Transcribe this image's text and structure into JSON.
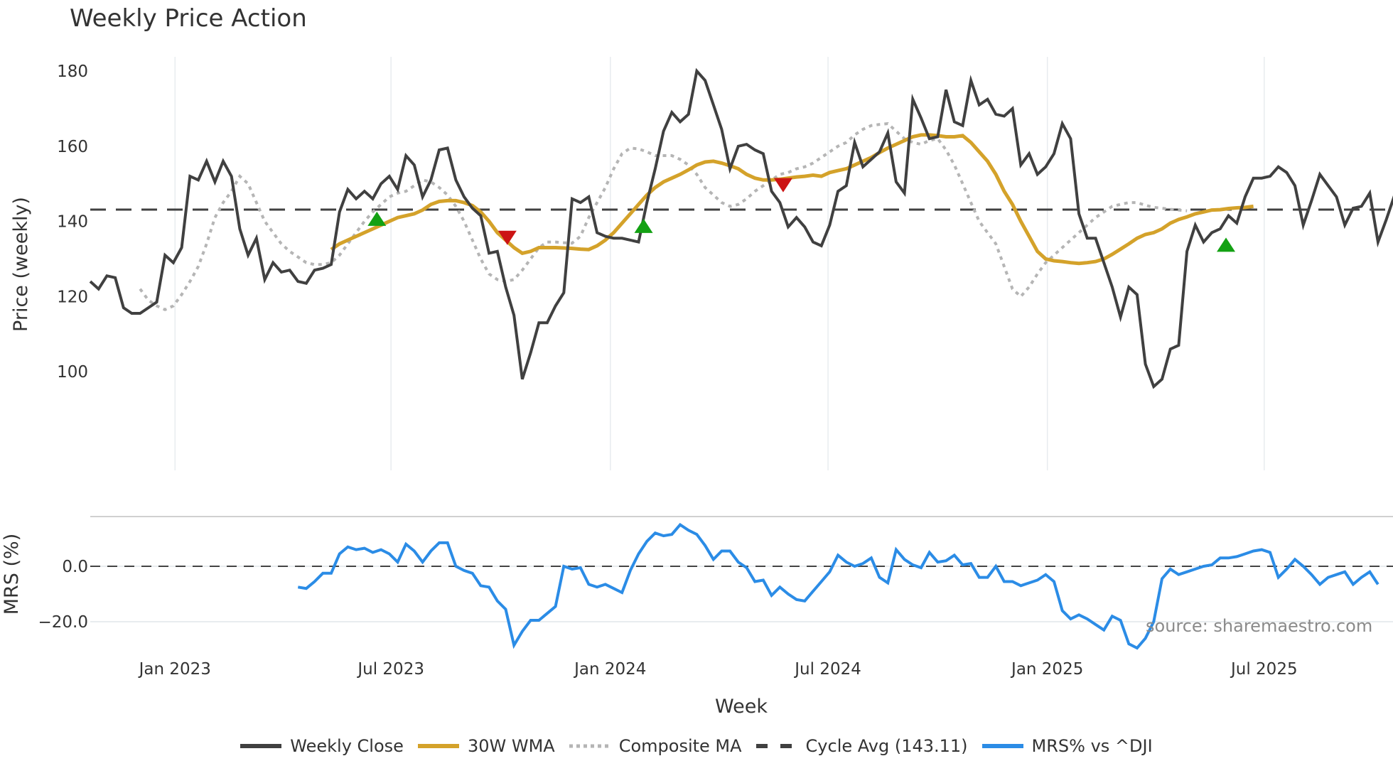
{
  "title": "Weekly Price Action",
  "source_label": "source: sharemaestro.com",
  "x_axis_title": "Week",
  "price_axis_title": "Price (weekly)",
  "mrs_axis_title": "MRS (%)",
  "legend": [
    {
      "label": "Weekly Close",
      "color": "#404040",
      "style": "solid"
    },
    {
      "label": "30W WMA",
      "color": "#d4a22a",
      "style": "solid"
    },
    {
      "label": "Composite MA",
      "color": "#b5b5b5",
      "style": "dotted"
    },
    {
      "label": "Cycle Avg (143.11)",
      "color": "#404040",
      "style": "dashed"
    },
    {
      "label": "MRS% vs ^DJI",
      "color": "#2b8ce6",
      "style": "solid"
    }
  ],
  "colors": {
    "close": "#404040",
    "wma": "#d4a22a",
    "composite": "#b5b5b5",
    "cycle": "#404040",
    "mrs": "#2b8ce6",
    "buy_marker": "#13a113",
    "sell_marker": "#cc1414",
    "grid": "#e8ecef"
  },
  "chart_data": [
    {
      "type": "line",
      "title": "Weekly Price Action",
      "xlabel": "Week",
      "ylabel": "Price (weekly)",
      "ylim": [
        91,
        184
      ],
      "y_ticks": [
        100,
        120,
        140,
        160,
        180
      ],
      "x_ticks": [
        {
          "label": "Jan 2023",
          "index": 10.2
        },
        {
          "label": "Jul 2023",
          "index": 36.2
        },
        {
          "label": "Jan 2024",
          "index": 62.6
        },
        {
          "label": "Jul 2024",
          "index": 88.8
        },
        {
          "label": "Jan 2025",
          "index": 115.2
        },
        {
          "label": "Jul 2025",
          "index": 141.3
        }
      ],
      "grid": true,
      "cycle_avg": 143.11,
      "series": [
        {
          "name": "Weekly Close",
          "start_index": 0,
          "values": [
            124,
            122,
            125.5,
            125,
            117,
            115.5,
            115.5,
            117,
            118.5,
            131,
            129,
            133,
            152,
            151,
            156,
            150.5,
            156,
            152,
            138,
            131,
            135.5,
            124.5,
            129,
            126.5,
            127,
            124,
            123.5,
            127,
            127.5,
            128.5,
            142.5,
            148.5,
            146,
            148,
            146,
            150,
            152,
            148.5,
            157.5,
            155,
            146.5,
            151,
            159,
            159.5,
            151,
            146.5,
            143.5,
            141.5,
            131.5,
            132,
            122.5,
            115,
            98,
            105,
            113,
            113,
            117.5,
            121,
            146,
            145,
            146.5,
            137,
            136,
            135.5,
            135.5,
            135,
            134.5,
            145,
            154,
            164,
            169,
            166.5,
            168.5,
            180,
            177.5,
            171,
            164.5,
            154,
            160,
            160.5,
            159,
            158,
            148,
            145,
            138.5,
            141,
            138.5,
            134.5,
            133.5,
            139,
            148,
            149.5,
            161,
            154.5,
            156.5,
            158.5,
            163.5,
            150.5,
            147.5,
            172.5,
            167.5,
            162,
            162.5,
            175,
            166.5,
            165.5,
            177.5,
            171,
            172.5,
            168.5,
            168,
            170,
            155,
            158,
            152.5,
            154.5,
            158,
            166,
            162,
            142,
            135.5,
            135.5,
            129,
            122.5,
            114.5,
            122.5,
            120.5,
            102,
            96,
            98,
            106,
            107,
            132,
            139,
            134.5,
            137,
            138,
            141.5,
            139.5,
            146.5,
            151.5,
            151.5,
            152,
            154.5,
            153,
            149.5,
            139,
            145.5,
            152.5,
            149.5,
            146.5,
            139,
            143.5,
            144,
            147.5,
            134.5,
            140.5,
            147,
            141
          ]
        },
        {
          "name": "30W WMA",
          "start_index": 29,
          "values": [
            132.5,
            134,
            135,
            136,
            137,
            138,
            139,
            140,
            141,
            141.5,
            142,
            143,
            144.5,
            145.3,
            145.5,
            145.5,
            145,
            144.2,
            142.5,
            140,
            137,
            135,
            133,
            131.5,
            132,
            133,
            133,
            133,
            132.9,
            132.8,
            132.6,
            132.5,
            133.5,
            135,
            137,
            139.5,
            142,
            144.5,
            147,
            149,
            150.5,
            151.5,
            152.5,
            153.7,
            155,
            155.8,
            156,
            155.5,
            154.8,
            154,
            152.5,
            151.5,
            151,
            151,
            151.2,
            151.5,
            151.8,
            152,
            152.3,
            152,
            153,
            153.5,
            154,
            155,
            156,
            157,
            158.3,
            159.5,
            160.5,
            161.5,
            162.5,
            163,
            163,
            162.8,
            162.5,
            162.5,
            162.8,
            161,
            158.5,
            156,
            152.5,
            148,
            144.5,
            140,
            136,
            132,
            130,
            129.5,
            129.3,
            129,
            128.8,
            129,
            129.3,
            130,
            131.2,
            132.6,
            134,
            135.5,
            136.5,
            137,
            138,
            139.5,
            140.5,
            141.2,
            142,
            142.5,
            143,
            143.1,
            143.4,
            143.6,
            143.7,
            144
          ]
        },
        {
          "name": "Composite MA",
          "start_index": 6,
          "values": [
            122,
            119,
            117.5,
            116.5,
            117.5,
            120.5,
            124,
            128,
            134,
            141,
            145,
            148,
            152,
            150,
            145,
            140,
            137,
            134,
            132,
            130.5,
            129,
            128.5,
            128.5,
            129,
            131,
            134,
            137,
            140,
            142.5,
            144.5,
            146.5,
            147.5,
            148,
            149.5,
            151,
            150.5,
            149,
            147,
            144,
            140,
            135,
            130,
            126,
            124.5,
            124,
            124.5,
            127,
            130,
            133,
            134.5,
            134.5,
            134.3,
            134.2,
            136,
            141,
            145,
            149,
            154,
            158,
            159.5,
            159.3,
            158.5,
            157.5,
            157.5,
            157.5,
            156.5,
            155,
            152.5,
            149,
            147,
            145,
            144,
            144.5,
            146,
            148,
            149.5,
            151,
            152.5,
            153,
            154,
            154.5,
            155.5,
            157,
            158.5,
            160,
            161,
            163,
            164.5,
            165.5,
            165.8,
            166,
            164,
            162,
            161,
            160.5,
            161.5,
            162,
            159,
            155,
            150,
            145,
            140,
            137,
            134,
            128,
            122,
            120,
            122.5,
            126,
            129,
            131,
            133,
            135,
            137,
            139,
            141,
            142.5,
            144,
            144.5,
            145,
            145,
            144.3,
            143.7,
            143.5,
            143.2,
            143,
            142.8
          ]
        },
        {
          "name": "Cycle Avg (143.11)",
          "constant": 143.11
        }
      ],
      "markers": [
        {
          "type": "buy",
          "index": 34.5,
          "value": 140.5
        },
        {
          "type": "sell",
          "index": 50.2,
          "value": 135.8
        },
        {
          "type": "buy",
          "index": 66.6,
          "value": 138.6
        },
        {
          "type": "sell",
          "index": 83.4,
          "value": 149.8
        },
        {
          "type": "buy",
          "index": 136.7,
          "value": 133.6
        }
      ]
    },
    {
      "type": "line",
      "ylabel": "MRS (%)",
      "ylim": [
        -30,
        18
      ],
      "y_ticks": [
        0.0,
        -20.0
      ],
      "y_tick_labels": [
        "0.0",
        "−20.0"
      ],
      "zero_line": 0,
      "series": [
        {
          "name": "MRS% vs ^DJI",
          "start_index": 25,
          "values": [
            -7.5,
            -8,
            -5.5,
            -2.5,
            -2.5,
            4.5,
            7,
            6,
            6.5,
            5,
            6,
            4.5,
            1.5,
            8,
            5.5,
            1.5,
            5.5,
            8.5,
            8.5,
            0,
            -1.5,
            -2.5,
            -7,
            -7.5,
            -12.5,
            -15.5,
            -28.5,
            -23.5,
            -19.5,
            -19.5,
            -17,
            -14.5,
            0,
            -1,
            -0.5,
            -6.5,
            -7.5,
            -6.5,
            -8,
            -9.5,
            -1.5,
            4.5,
            9,
            12,
            11,
            11.5,
            15,
            13,
            11.5,
            7.5,
            2.5,
            5.5,
            5.5,
            1.5,
            -0.5,
            -5.5,
            -5,
            -10.5,
            -7.5,
            -10,
            -12,
            -12.5,
            -9,
            -5.5,
            -2,
            4,
            1.5,
            0,
            1,
            3,
            -4,
            -6,
            6,
            2.5,
            0.5,
            -0.5,
            5,
            1.5,
            2,
            4,
            0.5,
            1,
            -4,
            -4,
            0,
            -5.5,
            -5.5,
            -7,
            -6,
            -5,
            -3,
            -5.5,
            -16,
            -19,
            -17.5,
            -19,
            -21,
            -23,
            -18,
            -19.5,
            -28,
            -29.5,
            -26,
            -20,
            -4.5,
            -1,
            -3,
            -2,
            -1,
            0,
            0.5,
            3,
            3,
            3.5,
            4.5,
            5.5,
            6,
            5,
            -4,
            -1,
            2.5,
            0,
            -3,
            -6.5,
            -4,
            -3,
            -2,
            -6.5,
            -4,
            -2,
            -6.5
          ]
        }
      ]
    }
  ]
}
